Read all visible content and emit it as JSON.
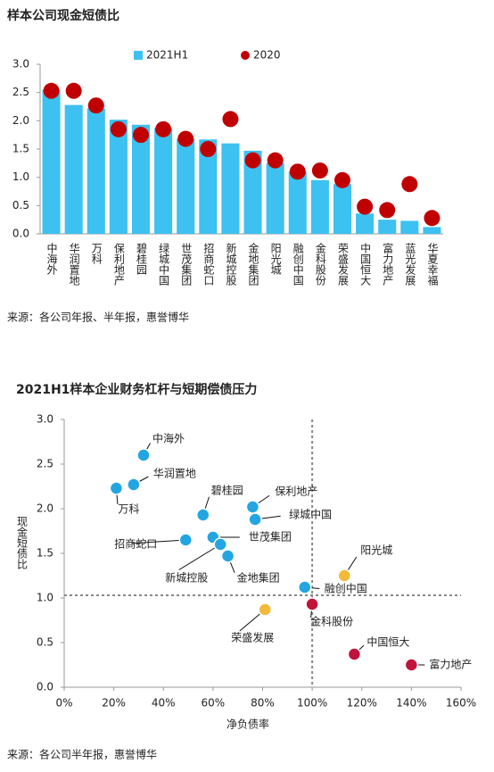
{
  "chart_data": [
    {
      "type": "combo",
      "title": "样本公司现金短债比",
      "categories": [
        "中海外",
        "华润置地",
        "万科",
        "保利地产",
        "碧桂园",
        "绿城中国",
        "世茂集团",
        "招商蛇口",
        "新城控股",
        "金地集团",
        "阳光城",
        "融创中国",
        "金科股份",
        "荣盛发展",
        "中国恒大",
        "富力地产",
        "蓝光发展",
        "华夏幸福"
      ],
      "series": [
        {
          "name": "2021H1",
          "type": "bar",
          "color": "#3dc1f0",
          "values": [
            2.55,
            2.28,
            2.22,
            2.02,
            1.93,
            1.87,
            1.68,
            1.67,
            1.6,
            1.47,
            1.25,
            1.1,
            0.95,
            0.88,
            0.36,
            0.25,
            0.23,
            0.12
          ]
        },
        {
          "name": "2020",
          "type": "dot",
          "color": "#c00000",
          "values": [
            2.53,
            2.53,
            2.27,
            1.85,
            1.75,
            1.85,
            1.68,
            1.5,
            2.03,
            1.3,
            1.3,
            1.1,
            1.12,
            0.95,
            0.48,
            0.42,
            0.88,
            0.28
          ]
        }
      ],
      "ylim": [
        0,
        3
      ],
      "yticks": [
        {
          "value": 0,
          "label": "0.0"
        },
        0.5,
        {
          "value": 1,
          "label": "1.0"
        },
        1.5,
        {
          "value": 2,
          "label": "2.0"
        },
        2.5,
        {
          "value": 3,
          "label": "3.0"
        }
      ],
      "source": "来源：各公司年报、半年报，惠誉博华"
    },
    {
      "type": "scatter",
      "title": "2021H1样本企业财务杠杆与短期偿债压力",
      "x_label": "净负债率",
      "y_label": "现金短债比",
      "points": [
        {
          "label": "中海外",
          "x": 32,
          "y": 2.6,
          "color": "#23a5e2"
        },
        {
          "label": "华润置地",
          "x": 28,
          "y": 2.27,
          "color": "#23a5e2"
        },
        {
          "label": "万科",
          "x": 21,
          "y": 2.23,
          "color": "#23a5e2"
        },
        {
          "label": "碧桂园",
          "x": 56,
          "y": 1.93,
          "color": "#23a5e2"
        },
        {
          "label": "保利地产",
          "x": 76,
          "y": 2.02,
          "color": "#23a5e2"
        },
        {
          "label": "绿城中国",
          "x": 77,
          "y": 1.88,
          "color": "#23a5e2"
        },
        {
          "label": "招商蛇口",
          "x": 49,
          "y": 1.65,
          "color": "#23a5e2"
        },
        {
          "label": "世茂集团",
          "x": 60,
          "y": 1.68,
          "color": "#23a5e2"
        },
        {
          "label": "新城控股",
          "x": 63,
          "y": 1.6,
          "color": "#23a5e2"
        },
        {
          "label": "金地集团",
          "x": 66,
          "y": 1.47,
          "color": "#23a5e2"
        },
        {
          "label": "融创中国",
          "x": 97,
          "y": 1.12,
          "color": "#23a5e2"
        },
        {
          "label": "阳光城",
          "x": 113,
          "y": 1.25,
          "color": "#f2b93b"
        },
        {
          "label": "荣盛发展",
          "x": 81,
          "y": 0.87,
          "color": "#f2b93b"
        },
        {
          "label": "金科股份",
          "x": 100,
          "y": 0.93,
          "color": "#c0143c"
        },
        {
          "label": "中国恒大",
          "x": 117,
          "y": 0.37,
          "color": "#c0143c"
        },
        {
          "label": "富力地产",
          "x": 140,
          "y": 0.25,
          "color": "#c0143c"
        }
      ],
      "reference_lines": {
        "x": 100,
        "y": 1.03
      },
      "xlim": [
        0,
        160
      ],
      "xticks": [
        {
          "value": 0,
          "label": "0%"
        },
        {
          "value": 20,
          "label": "20%"
        },
        {
          "value": 40,
          "label": "40%"
        },
        {
          "value": 60,
          "label": "60%"
        },
        {
          "value": 80,
          "label": "80%"
        },
        {
          "value": 100,
          "label": "100%"
        },
        {
          "value": 120,
          "label": "120%"
        },
        {
          "value": 140,
          "label": "140%"
        },
        {
          "value": 160,
          "label": "160%"
        }
      ],
      "ylim": [
        0,
        3
      ],
      "yticks": [
        {
          "value": 0,
          "label": "0.0"
        },
        0.5,
        {
          "value": 1,
          "label": "1.0"
        },
        1.5,
        {
          "value": 2,
          "label": "2.0"
        },
        2.5,
        {
          "value": 3,
          "label": "3.0"
        }
      ],
      "source": "来源：各公司半年报，惠誉博华"
    }
  ]
}
